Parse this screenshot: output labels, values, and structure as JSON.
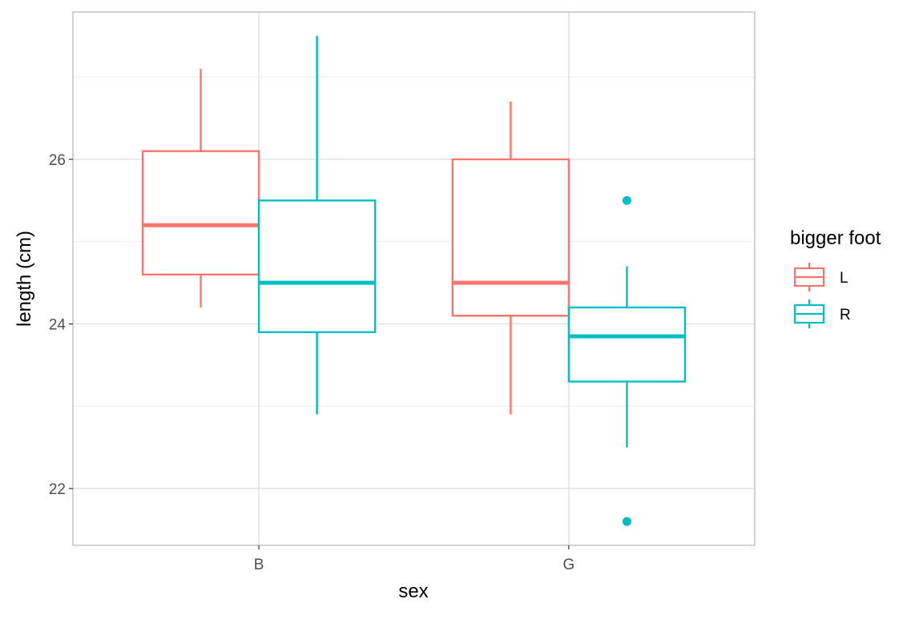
{
  "chart_data": {
    "type": "boxplot",
    "xlabel": "sex",
    "ylabel": "length (cm)",
    "categories": [
      "B",
      "G"
    ],
    "ylim": [
      21.31,
      27.79
    ],
    "yticks": [
      22,
      24,
      26
    ],
    "ytick_labels": [
      "22",
      "24",
      "26"
    ],
    "yminor": [
      23,
      25,
      27
    ],
    "grid": true,
    "legend": {
      "title": "bigger foot",
      "placement": "right",
      "entries": [
        "L",
        "R"
      ]
    },
    "series": [
      {
        "name": "L",
        "color": "#F8766D",
        "boxes": [
          {
            "category": "B",
            "lower_whisker": 24.2,
            "q1": 24.6,
            "median": 25.2,
            "q3": 26.1,
            "upper_whisker": 27.1,
            "outliers": []
          },
          {
            "category": "G",
            "lower_whisker": 22.9,
            "q1": 24.1,
            "median": 24.5,
            "q3": 26.0,
            "upper_whisker": 26.7,
            "outliers": []
          }
        ]
      },
      {
        "name": "R",
        "color": "#00BFC4",
        "boxes": [
          {
            "category": "B",
            "lower_whisker": 22.9,
            "q1": 23.9,
            "median": 24.5,
            "q3": 25.5,
            "upper_whisker": 27.5,
            "outliers": []
          },
          {
            "category": "G",
            "lower_whisker": 22.5,
            "q1": 23.3,
            "median": 23.85,
            "q3": 24.2,
            "upper_whisker": 24.7,
            "outliers": [
              25.5,
              21.6
            ]
          }
        ]
      }
    ]
  }
}
